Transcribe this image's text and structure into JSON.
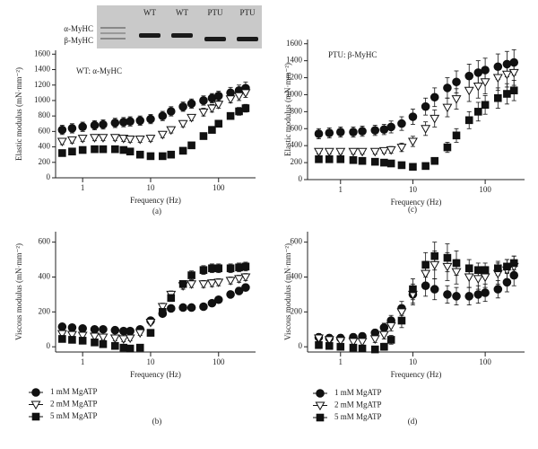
{
  "inset": {
    "row_labels": [
      "α-MyHC",
      "β-MyHC"
    ],
    "lane_labels": [
      "WT",
      "WT",
      "PTU",
      "PTU"
    ]
  },
  "chart_data": [
    {
      "type": "line",
      "panel_label": "(a)",
      "annotation": "WT: α-MyHC",
      "xlabel": "Frequency (Hz)",
      "ylabel": "Elastic modulus (mN·mm⁻²)",
      "log_x": true,
      "xlim": [
        0.4,
        350
      ],
      "xticks": [
        1,
        10,
        100
      ],
      "ylim": [
        0,
        1650
      ],
      "yticks": [
        0,
        200,
        400,
        600,
        800,
        1000,
        1200,
        1400,
        1600
      ],
      "x": [
        0.5,
        0.7,
        1,
        1.5,
        2,
        3,
        4,
        5,
        7,
        10,
        15,
        20,
        30,
        40,
        60,
        80,
        100,
        150,
        200,
        250
      ],
      "series": [
        {
          "color": "#111",
          "marker": "circle",
          "fill": "#111",
          "values": [
            620,
            640,
            660,
            680,
            690,
            710,
            720,
            730,
            740,
            760,
            800,
            860,
            920,
            960,
            1000,
            1030,
            1060,
            1100,
            1130,
            1160
          ],
          "errors": [
            60,
            60,
            60,
            60,
            60,
            60,
            60,
            60,
            60,
            60,
            60,
            60,
            60,
            60,
            60,
            60,
            60,
            70,
            70,
            80
          ]
        },
        {
          "color": "#111",
          "marker": "triangle-down",
          "fill": "#fff",
          "values": [
            470,
            490,
            510,
            520,
            520,
            520,
            510,
            500,
            500,
            510,
            560,
            620,
            700,
            780,
            850,
            900,
            950,
            1020,
            1060,
            1100
          ],
          "errors": [
            40,
            40,
            40,
            40,
            40,
            40,
            40,
            40,
            40,
            40,
            40,
            40,
            40,
            40,
            50,
            50,
            50,
            50,
            60,
            60
          ]
        },
        {
          "color": "#111",
          "marker": "square",
          "fill": "#111",
          "values": [
            320,
            340,
            360,
            370,
            370,
            370,
            360,
            340,
            300,
            280,
            280,
            300,
            350,
            420,
            540,
            620,
            700,
            800,
            860,
            900
          ],
          "errors": [
            30,
            30,
            30,
            30,
            30,
            30,
            30,
            30,
            30,
            30,
            30,
            30,
            30,
            30,
            40,
            40,
            40,
            40,
            50,
            50
          ]
        }
      ]
    },
    {
      "type": "line",
      "panel_label": "(b)",
      "legend": "below",
      "xlabel": "Frequency (Hz)",
      "ylabel": "Viscous modulus (mN·mm⁻²)",
      "log_x": true,
      "xlim": [
        0.4,
        350
      ],
      "xticks": [
        1,
        10,
        100
      ],
      "ylim": [
        -30,
        660
      ],
      "yticks": [
        0,
        200,
        400,
        600
      ],
      "x": [
        0.5,
        0.7,
        1,
        1.5,
        2,
        3,
        4,
        5,
        7,
        10,
        15,
        20,
        30,
        40,
        60,
        80,
        100,
        150,
        200,
        250
      ],
      "series": [
        {
          "name": "1 mM MgATP",
          "color": "#111",
          "marker": "circle",
          "fill": "#111",
          "values": [
            115,
            110,
            105,
            100,
            100,
            95,
            90,
            90,
            100,
            150,
            190,
            220,
            225,
            225,
            230,
            250,
            270,
            300,
            320,
            340
          ],
          "errors": [
            15,
            15,
            15,
            15,
            15,
            15,
            15,
            15,
            15,
            15,
            15,
            15,
            15,
            15,
            15,
            15,
            15,
            15,
            20,
            20
          ]
        },
        {
          "name": "2 mM MgATP",
          "color": "#111",
          "marker": "triangle-down",
          "fill": "#fff",
          "values": [
            75,
            70,
            65,
            60,
            55,
            50,
            45,
            50,
            80,
            140,
            230,
            300,
            350,
            360,
            360,
            365,
            370,
            380,
            390,
            400
          ],
          "errors": [
            15,
            15,
            15,
            15,
            15,
            15,
            15,
            15,
            15,
            15,
            20,
            20,
            20,
            20,
            20,
            20,
            20,
            20,
            20,
            20
          ]
        },
        {
          "name": "5 mM MgATP",
          "color": "#111",
          "marker": "square",
          "fill": "#111",
          "values": [
            45,
            40,
            35,
            25,
            15,
            5,
            -5,
            -10,
            -5,
            80,
            200,
            280,
            360,
            410,
            440,
            450,
            450,
            450,
            455,
            460
          ],
          "errors": [
            15,
            15,
            15,
            15,
            15,
            15,
            15,
            15,
            15,
            15,
            20,
            20,
            20,
            25,
            25,
            25,
            25,
            25,
            25,
            25
          ]
        }
      ]
    },
    {
      "type": "line",
      "panel_label": "(c)",
      "annotation": "PTU: β-MyHC",
      "xlabel": "Frequency (Hz)",
      "ylabel": "Elastic modulus (mN·mm⁻²)",
      "log_x": true,
      "xlim": [
        0.35,
        350
      ],
      "xticks": [
        1,
        10,
        100
      ],
      "ylim": [
        0,
        1650
      ],
      "yticks": [
        0,
        200,
        400,
        600,
        800,
        1000,
        1200,
        1400,
        1600
      ],
      "x": [
        0.5,
        0.7,
        1,
        1.5,
        2,
        3,
        4,
        5,
        7,
        10,
        15,
        20,
        30,
        40,
        60,
        80,
        100,
        150,
        200,
        250
      ],
      "series": [
        {
          "color": "#111",
          "marker": "circle",
          "fill": "#111",
          "values": [
            540,
            550,
            560,
            560,
            570,
            580,
            590,
            620,
            660,
            740,
            860,
            970,
            1080,
            1150,
            1220,
            1260,
            1290,
            1330,
            1360,
            1380
          ],
          "errors": [
            60,
            60,
            60,
            60,
            60,
            60,
            60,
            70,
            80,
            90,
            100,
            110,
            120,
            130,
            140,
            140,
            140,
            150,
            150,
            150
          ]
        },
        {
          "color": "#111",
          "marker": "triangle-down",
          "fill": "#fff",
          "values": [
            330,
            330,
            330,
            330,
            330,
            330,
            340,
            350,
            380,
            450,
            600,
            720,
            850,
            950,
            1050,
            1100,
            1150,
            1200,
            1240,
            1260
          ],
          "errors": [
            30,
            30,
            30,
            30,
            30,
            30,
            30,
            40,
            50,
            60,
            80,
            100,
            110,
            120,
            130,
            140,
            140,
            150,
            150,
            150
          ]
        },
        {
          "color": "#111",
          "marker": "square",
          "fill": "#111",
          "values": [
            240,
            240,
            240,
            230,
            220,
            210,
            200,
            190,
            170,
            150,
            160,
            220,
            380,
            520,
            700,
            800,
            880,
            960,
            1010,
            1050
          ],
          "errors": [
            20,
            20,
            20,
            20,
            20,
            20,
            20,
            20,
            20,
            20,
            30,
            40,
            60,
            80,
            100,
            110,
            110,
            120,
            120,
            120
          ]
        }
      ]
    },
    {
      "type": "line",
      "panel_label": "(d)",
      "legend": "below",
      "xlabel": "Frequency (Hz)",
      "ylabel": "Viscous modulus (mN·mm⁻²)",
      "log_x": true,
      "xlim": [
        0.35,
        350
      ],
      "xticks": [
        1,
        10,
        100
      ],
      "ylim": [
        -30,
        660
      ],
      "yticks": [
        0,
        200,
        400,
        600
      ],
      "x": [
        0.5,
        0.7,
        1,
        1.5,
        2,
        3,
        4,
        5,
        7,
        10,
        15,
        20,
        30,
        40,
        60,
        80,
        100,
        150,
        200,
        250
      ],
      "series": [
        {
          "name": "1 mM MgATP",
          "color": "#111",
          "marker": "circle",
          "fill": "#111",
          "values": [
            55,
            50,
            50,
            55,
            60,
            80,
            110,
            150,
            220,
            300,
            350,
            330,
            300,
            290,
            290,
            300,
            310,
            330,
            370,
            410
          ],
          "errors": [
            20,
            20,
            20,
            20,
            20,
            20,
            25,
            30,
            40,
            50,
            60,
            60,
            50,
            50,
            50,
            50,
            50,
            50,
            55,
            60
          ]
        },
        {
          "name": "2 mM MgATP",
          "color": "#111",
          "marker": "triangle-down",
          "fill": "#fff",
          "values": [
            50,
            40,
            35,
            30,
            30,
            45,
            70,
            120,
            200,
            300,
            420,
            470,
            460,
            430,
            400,
            390,
            400,
            420,
            440,
            460
          ],
          "errors": [
            20,
            20,
            20,
            20,
            20,
            20,
            25,
            30,
            40,
            60,
            70,
            80,
            80,
            70,
            60,
            60,
            60,
            60,
            60,
            60
          ]
        },
        {
          "name": "5 mM MgATP",
          "color": "#111",
          "marker": "square",
          "fill": "#111",
          "values": [
            10,
            5,
            0,
            -5,
            -10,
            -15,
            0,
            40,
            150,
            330,
            470,
            520,
            510,
            480,
            450,
            440,
            440,
            450,
            460,
            480
          ],
          "errors": [
            15,
            15,
            15,
            15,
            15,
            15,
            20,
            25,
            40,
            60,
            70,
            80,
            80,
            70,
            50,
            40,
            40,
            40,
            40,
            40
          ]
        }
      ]
    }
  ]
}
